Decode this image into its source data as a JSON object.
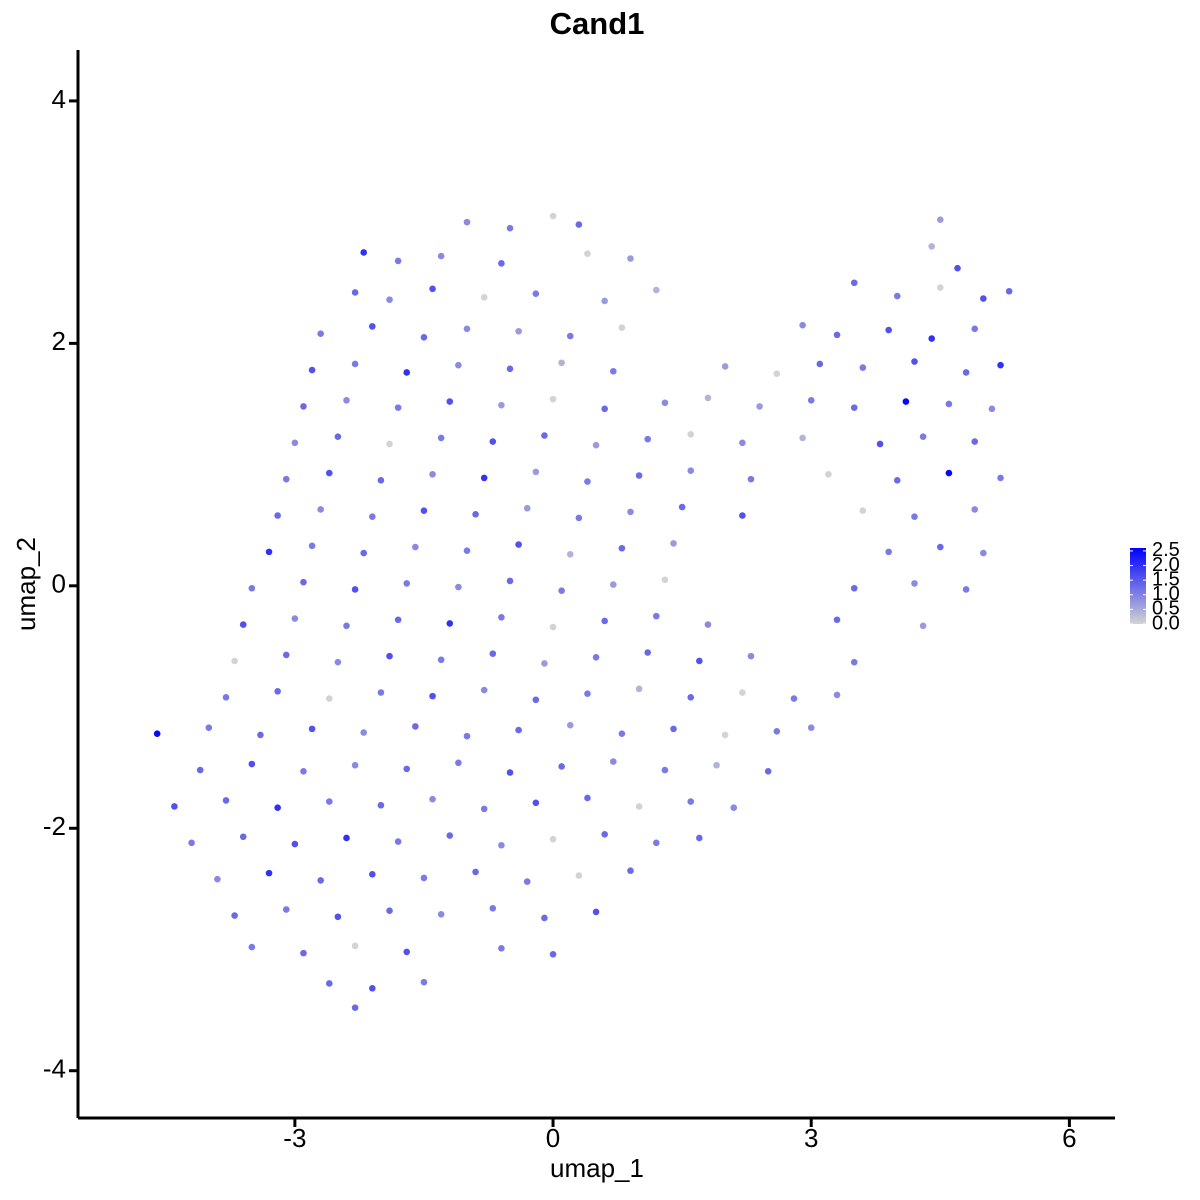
{
  "chart_data": {
    "type": "scatter",
    "title": "Cand1",
    "x_label": "umap_1",
    "y_label": "umap_2",
    "xlim": [
      -5.52,
      6.53
    ],
    "ylim": [
      -4.39,
      4.42
    ],
    "xticks": [
      -3,
      0,
      3,
      6
    ],
    "yticks": [
      -4,
      -2,
      0,
      2,
      4
    ],
    "color_low": "#d3d3d3",
    "color_high": "#0000ff",
    "color_lim": [
      0,
      2.6
    ],
    "color_ticks": [
      {
        "value": 0,
        "label": "0.0"
      },
      {
        "value": 0.5,
        "label": "0.5"
      },
      {
        "value": 1,
        "label": "1.0"
      },
      {
        "value": 1.5,
        "label": "1.5"
      },
      {
        "value": 2,
        "label": "2.0"
      },
      {
        "value": 2.5,
        "label": "2.5"
      }
    ],
    "x": [
      -1.0,
      -0.5,
      0.0,
      0.3,
      4.5,
      -2.2,
      -1.8,
      -1.3,
      -0.6,
      0.4,
      0.9,
      4.4,
      4.7,
      -2.3,
      -1.9,
      -1.4,
      -0.8,
      -0.2,
      0.6,
      1.2,
      3.5,
      4.0,
      4.5,
      5.0,
      5.3,
      -2.7,
      -2.1,
      -1.5,
      -1.0,
      -0.4,
      0.2,
      0.8,
      2.9,
      3.3,
      3.9,
      4.4,
      4.9,
      -2.8,
      -2.3,
      -1.7,
      -1.1,
      -0.5,
      0.1,
      0.7,
      2.0,
      2.6,
      3.1,
      3.6,
      4.2,
      4.8,
      5.2,
      -2.9,
      -2.4,
      -1.8,
      -1.2,
      -0.6,
      0.0,
      0.6,
      1.3,
      1.8,
      2.4,
      3.0,
      3.5,
      4.1,
      4.6,
      5.1,
      -3.0,
      -2.5,
      -1.9,
      -1.3,
      -0.7,
      -0.1,
      0.5,
      1.1,
      1.6,
      2.2,
      2.9,
      3.8,
      4.3,
      4.9,
      -3.1,
      -2.6,
      -2.0,
      -1.4,
      -0.8,
      -0.2,
      0.4,
      1.0,
      1.6,
      2.3,
      3.2,
      4.0,
      4.6,
      5.2,
      -3.2,
      -2.7,
      -2.1,
      -1.5,
      -0.9,
      -0.3,
      0.3,
      0.9,
      1.5,
      2.2,
      3.6,
      4.2,
      4.9,
      -3.3,
      -2.8,
      -2.2,
      -1.6,
      -1.0,
      -0.4,
      0.2,
      0.8,
      1.4,
      3.9,
      4.5,
      5.0,
      -3.5,
      -2.9,
      -2.3,
      -1.7,
      -1.1,
      -0.5,
      0.1,
      0.7,
      1.3,
      3.5,
      4.2,
      4.8,
      -3.6,
      -3.0,
      -2.4,
      -1.8,
      -1.2,
      -0.6,
      0.0,
      0.6,
      1.2,
      1.8,
      3.3,
      4.3,
      -3.7,
      -3.1,
      -2.5,
      -1.9,
      -1.3,
      -0.7,
      -0.1,
      0.5,
      1.1,
      1.7,
      2.3,
      3.5,
      -3.8,
      -3.2,
      -2.6,
      -2.0,
      -1.4,
      -0.8,
      -0.2,
      0.4,
      1.0,
      1.6,
      2.2,
      2.8,
      3.3,
      -4.6,
      -4.0,
      -3.4,
      -2.8,
      -2.2,
      -1.6,
      -1.0,
      -0.4,
      0.2,
      0.8,
      1.4,
      2.0,
      2.6,
      3.0,
      -4.1,
      -3.5,
      -2.9,
      -2.3,
      -1.7,
      -1.1,
      -0.5,
      0.1,
      0.7,
      1.3,
      1.9,
      2.5,
      -4.4,
      -3.8,
      -3.2,
      -2.6,
      -2.0,
      -1.4,
      -0.8,
      -0.2,
      0.4,
      1.0,
      1.6,
      2.1,
      -4.2,
      -3.6,
      -3.0,
      -2.4,
      -1.8,
      -1.2,
      -0.6,
      0.0,
      0.6,
      1.2,
      1.7,
      -3.9,
      -3.3,
      -2.7,
      -2.1,
      -1.5,
      -0.9,
      -0.3,
      0.3,
      0.9,
      -3.7,
      -3.1,
      -2.5,
      -1.9,
      -1.3,
      -0.7,
      -0.1,
      0.5,
      -3.5,
      -2.9,
      -2.3,
      -1.7,
      -0.6,
      0.0,
      -2.6,
      -2.1,
      -1.5,
      -2.3
    ],
    "values": [
      3.0,
      2.95,
      3.05,
      2.98,
      3.02,
      2.75,
      2.68,
      2.72,
      2.66,
      2.74,
      2.7,
      2.8,
      2.62,
      2.42,
      2.36,
      2.45,
      2.38,
      2.41,
      2.35,
      2.44,
      2.5,
      2.39,
      2.46,
      2.37,
      2.43,
      2.08,
      2.14,
      2.05,
      2.12,
      2.1,
      2.06,
      2.13,
      2.15,
      2.07,
      2.11,
      2.04,
      2.12,
      1.78,
      1.83,
      1.76,
      1.82,
      1.79,
      1.84,
      1.77,
      1.81,
      1.75,
      1.83,
      1.8,
      1.85,
      1.76,
      1.82,
      1.48,
      1.53,
      1.47,
      1.52,
      1.49,
      1.54,
      1.46,
      1.51,
      1.55,
      1.48,
      1.53,
      1.47,
      1.52,
      1.5,
      1.46,
      1.18,
      1.23,
      1.17,
      1.22,
      1.19,
      1.24,
      1.16,
      1.21,
      1.25,
      1.18,
      1.22,
      1.17,
      1.23,
      1.19,
      0.88,
      0.93,
      0.87,
      0.92,
      0.89,
      0.94,
      0.86,
      0.91,
      0.95,
      0.88,
      0.92,
      0.87,
      0.93,
      0.89,
      0.58,
      0.63,
      0.57,
      0.62,
      0.59,
      0.64,
      0.56,
      0.61,
      0.65,
      0.58,
      0.62,
      0.57,
      0.63,
      0.28,
      0.33,
      0.27,
      0.32,
      0.29,
      0.34,
      0.26,
      0.31,
      0.35,
      0.28,
      0.32,
      0.27,
      -0.02,
      0.03,
      -0.03,
      0.02,
      -0.01,
      0.04,
      -0.04,
      0.01,
      0.05,
      -0.02,
      0.02,
      -0.03,
      -0.32,
      -0.27,
      -0.33,
      -0.28,
      -0.31,
      -0.26,
      -0.34,
      -0.29,
      -0.25,
      -0.32,
      -0.28,
      -0.33,
      -0.62,
      -0.57,
      -0.63,
      -0.58,
      -0.61,
      -0.56,
      -0.64,
      -0.59,
      -0.55,
      -0.62,
      -0.58,
      -0.63,
      -0.92,
      -0.87,
      -0.93,
      -0.88,
      -0.91,
      -0.86,
      -0.94,
      -0.89,
      -0.85,
      -0.92,
      -0.88,
      -0.93,
      -0.9,
      -1.22,
      -1.17,
      -1.23,
      -1.18,
      -1.21,
      -1.16,
      -1.24,
      -1.19,
      -1.15,
      -1.22,
      -1.18,
      -1.23,
      -1.2,
      -1.17,
      -1.52,
      -1.47,
      -1.53,
      -1.48,
      -1.51,
      -1.46,
      -1.54,
      -1.49,
      -1.45,
      -1.52,
      -1.48,
      -1.53,
      -1.82,
      -1.77,
      -1.83,
      -1.78,
      -1.81,
      -1.76,
      -1.84,
      -1.79,
      -1.75,
      -1.82,
      -1.78,
      -1.83,
      -2.12,
      -2.07,
      -2.13,
      -2.08,
      -2.11,
      -2.06,
      -2.14,
      -2.09,
      -2.05,
      -2.12,
      -2.08,
      -2.42,
      -2.37,
      -2.43,
      -2.38,
      -2.41,
      -2.36,
      -2.44,
      -2.39,
      -2.35,
      -2.72,
      -2.67,
      -2.73,
      -2.68,
      -2.71,
      -2.66,
      -2.74,
      -2.69,
      -2.98,
      -3.03,
      -2.97,
      -3.02,
      -2.99,
      -3.04,
      -3.28,
      -3.32,
      -3.27,
      -3.48
    ],
    "expression": [
      0.9,
      1.1,
      0.0,
      1.3,
      0.7,
      2.0,
      1.1,
      0.9,
      1.3,
      0.0,
      0.7,
      0.4,
      1.6,
      1.3,
      0.9,
      1.6,
      0.0,
      1.1,
      0.7,
      0.4,
      1.3,
      1.1,
      0.0,
      1.6,
      1.3,
      1.1,
      1.6,
      1.3,
      0.9,
      0.7,
      1.1,
      0.0,
      0.9,
      1.3,
      1.6,
      2.0,
      1.1,
      1.6,
      1.1,
      2.0,
      0.9,
      1.3,
      0.4,
      1.1,
      0.7,
      0.0,
      1.3,
      1.1,
      1.6,
      1.3,
      2.0,
      1.3,
      0.9,
      1.1,
      1.6,
      0.7,
      0.0,
      1.3,
      0.9,
      0.4,
      0.7,
      1.1,
      1.3,
      2.5,
      1.1,
      0.9,
      0.9,
      1.3,
      0.0,
      1.1,
      1.6,
      1.3,
      0.7,
      1.1,
      0.0,
      0.9,
      0.4,
      1.6,
      1.1,
      1.3,
      1.1,
      1.6,
      1.3,
      0.9,
      2.0,
      0.7,
      1.1,
      1.3,
      0.9,
      1.1,
      0.0,
      1.3,
      2.5,
      1.1,
      1.3,
      0.9,
      1.1,
      1.6,
      1.3,
      0.7,
      1.1,
      0.9,
      1.3,
      1.6,
      0.0,
      1.1,
      0.9,
      2.0,
      1.1,
      1.3,
      0.9,
      1.1,
      1.6,
      0.4,
      1.3,
      0.7,
      1.1,
      1.3,
      0.9,
      1.1,
      1.3,
      1.6,
      1.1,
      0.9,
      1.3,
      1.1,
      0.7,
      0.0,
      1.3,
      0.9,
      1.1,
      1.6,
      0.9,
      1.1,
      1.3,
      2.0,
      1.1,
      0.0,
      1.3,
      1.1,
      0.9,
      1.3,
      0.7,
      0.0,
      1.3,
      0.9,
      1.6,
      1.1,
      1.3,
      0.7,
      1.1,
      1.3,
      1.6,
      0.9,
      1.1,
      1.1,
      1.3,
      0.0,
      1.1,
      1.6,
      0.9,
      1.3,
      1.1,
      0.4,
      1.3,
      0.0,
      1.1,
      0.9,
      2.5,
      1.1,
      1.3,
      1.6,
      0.9,
      1.3,
      1.1,
      1.3,
      0.7,
      1.1,
      1.3,
      0.0,
      1.1,
      0.9,
      1.3,
      1.6,
      1.1,
      0.9,
      1.3,
      1.1,
      1.6,
      1.3,
      0.9,
      1.1,
      0.4,
      1.3,
      1.6,
      1.3,
      2.0,
      1.1,
      1.3,
      0.9,
      1.1,
      1.6,
      1.3,
      0.0,
      1.1,
      0.9,
      1.1,
      1.3,
      1.6,
      2.0,
      1.1,
      1.3,
      0.9,
      0.0,
      1.3,
      1.1,
      1.3,
      0.9,
      2.0,
      1.3,
      1.6,
      1.1,
      1.3,
      1.1,
      0.0,
      1.3,
      1.3,
      1.1,
      1.6,
      1.3,
      0.9,
      1.1,
      1.3,
      1.6,
      1.1,
      1.3,
      0.0,
      1.6,
      1.1,
      1.3,
      1.3,
      1.6,
      1.1,
      1.3
    ]
  }
}
